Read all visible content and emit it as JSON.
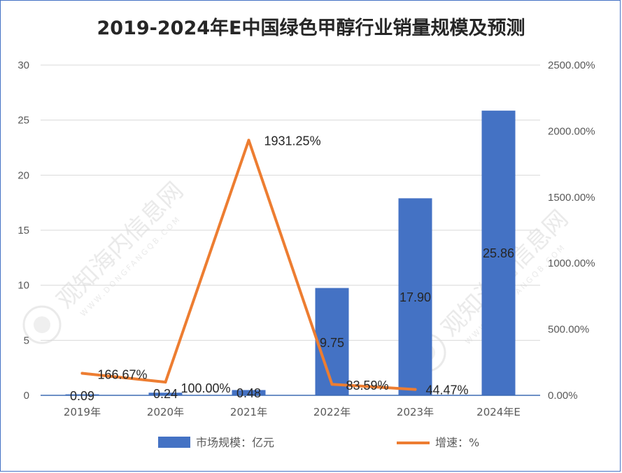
{
  "chart_data": {
    "type": "bar",
    "title": "2019-2024年E中国绿色甲醇行业销量规模及预测",
    "categories": [
      "2019年",
      "2020年",
      "2021年",
      "2022年",
      "2023年",
      "2024年E"
    ],
    "series": [
      {
        "name": "市场规模：亿元",
        "type": "bar",
        "axis": "left",
        "values": [
          0.09,
          0.24,
          0.48,
          9.75,
          17.9,
          25.86
        ],
        "labels": [
          "0.09",
          "0.24",
          "0.48",
          "9.75",
          "17.90",
          "25.86"
        ]
      },
      {
        "name": "增速：%",
        "type": "line",
        "axis": "right",
        "points": [
          {
            "category": "2019年",
            "value": 166.67,
            "label": "166.67%"
          },
          {
            "category": "2020年",
            "value": 100.0,
            "label": "100.00%"
          },
          {
            "category": "2021年",
            "value": 1931.25,
            "label": "1931.25%"
          },
          {
            "category": "2022年",
            "value": 83.59,
            "label": "83.59%"
          },
          {
            "category": "2023年",
            "value": 44.47,
            "label": "44.47%"
          }
        ]
      }
    ],
    "y_left": {
      "min": 0,
      "max": 30,
      "ticks": [
        "0",
        "5",
        "10",
        "15",
        "20",
        "25",
        "30"
      ]
    },
    "y_right": {
      "min": 0,
      "max": 2500,
      "ticks": [
        "0.00%",
        "500.00%",
        "1000.00%",
        "1500.00%",
        "2000.00%",
        "2500.00%"
      ]
    },
    "grid": true,
    "legend_position": "bottom",
    "colors": {
      "bar": "#4472c4",
      "line": "#ed7d31",
      "grid": "#d9d9d9"
    }
  },
  "watermark": {
    "text": "观知海内信息网",
    "subtext": "WWW.DONGFANGQB.COM"
  }
}
